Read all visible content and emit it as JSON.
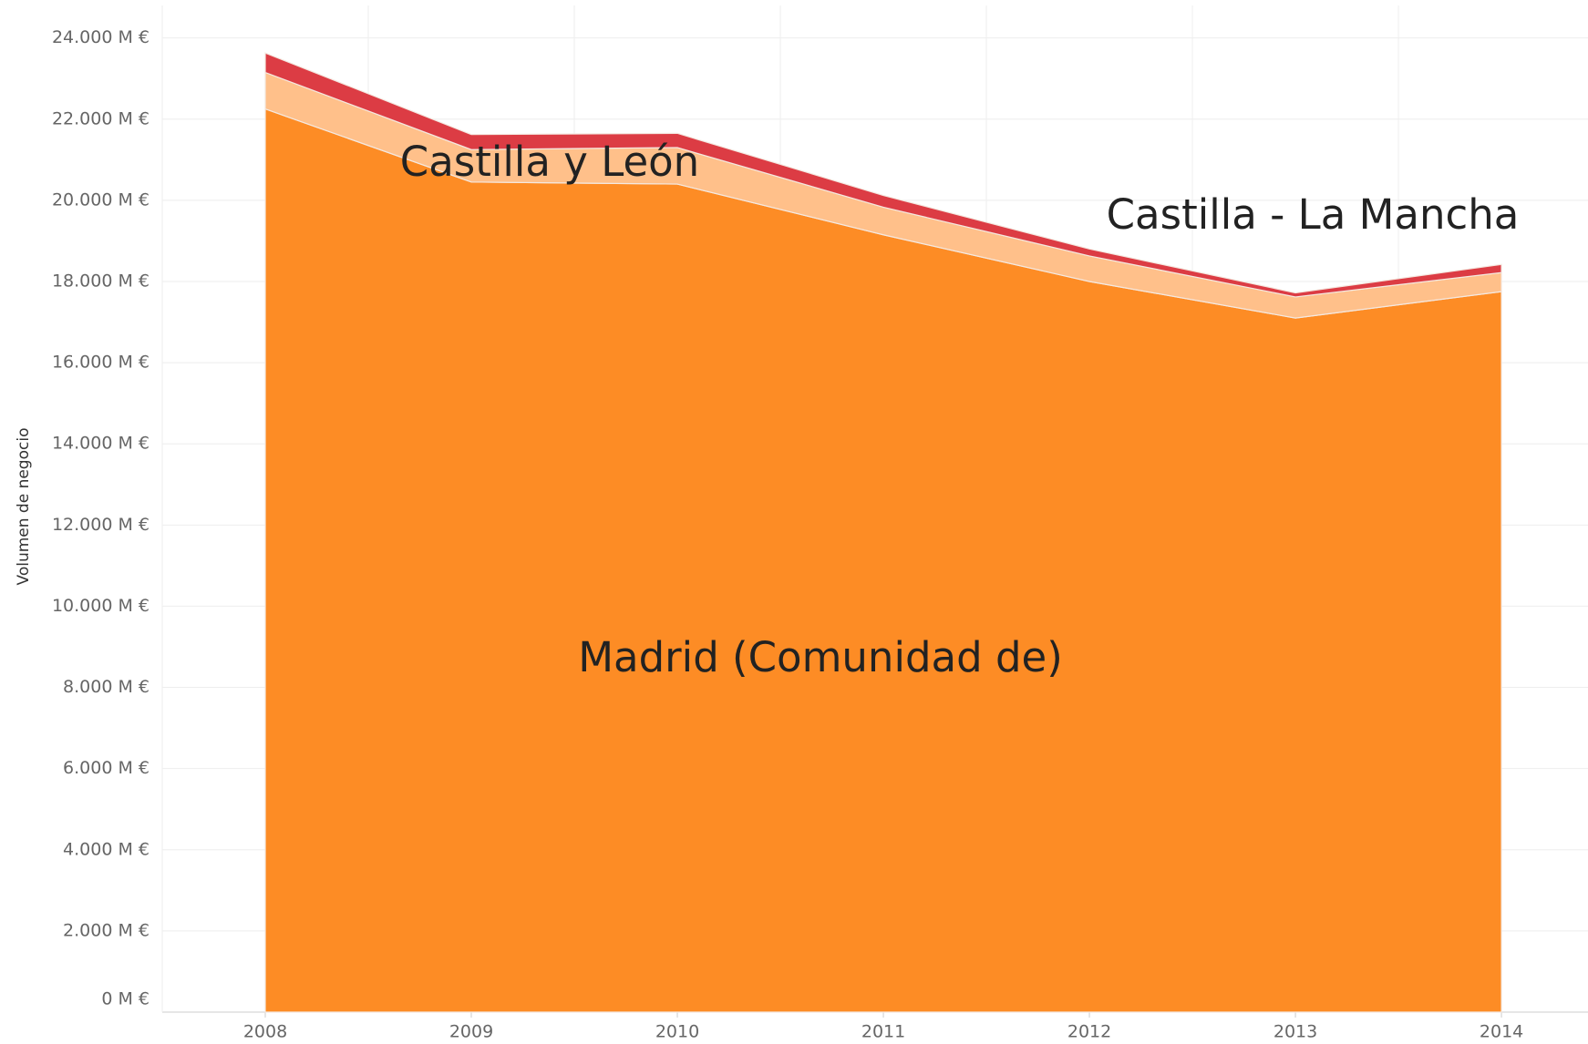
{
  "chart_data": {
    "type": "stacked_area",
    "y_axis_label": "Volumen de negocio",
    "x": [
      2008,
      2009,
      2010,
      2011,
      2012,
      2013,
      2014
    ],
    "xlim": [
      2007.5,
      2014.42
    ],
    "xticks": [
      2008,
      2009,
      2010,
      2011,
      2012,
      2013,
      2014
    ],
    "ylim": [
      0,
      24800
    ],
    "yticks": [
      {
        "value": 0,
        "label": "0 M €"
      },
      {
        "value": 2000,
        "label": "2.000 M €"
      },
      {
        "value": 4000,
        "label": "4.000 M €"
      },
      {
        "value": 6000,
        "label": "6.000 M €"
      },
      {
        "value": 8000,
        "label": "8.000 M €"
      },
      {
        "value": 10000,
        "label": "10.000 M €"
      },
      {
        "value": 12000,
        "label": "12.000 M €"
      },
      {
        "value": 14000,
        "label": "14.000 M €"
      },
      {
        "value": 16000,
        "label": "16.000 M €"
      },
      {
        "value": 18000,
        "label": "18.000 M €"
      },
      {
        "value": 20000,
        "label": "20.000 M €"
      },
      {
        "value": 22000,
        "label": "22.000 M €"
      },
      {
        "value": 24000,
        "label": "24.000 M €"
      }
    ],
    "grid": true,
    "series": [
      {
        "name": "Madrid (Comunidad de)",
        "color": "#fd8c25",
        "values": [
          22250,
          20450,
          20400,
          19150,
          18000,
          17100,
          17750
        ]
      },
      {
        "name": "Castilla y León",
        "color": "#ffc08a",
        "values": [
          900,
          800,
          900,
          680,
          630,
          520,
          470
        ]
      },
      {
        "name": "Castilla - La Mancha",
        "color": "#dc3c44",
        "values": [
          480,
          370,
          350,
          290,
          170,
          100,
          200
        ]
      }
    ]
  }
}
